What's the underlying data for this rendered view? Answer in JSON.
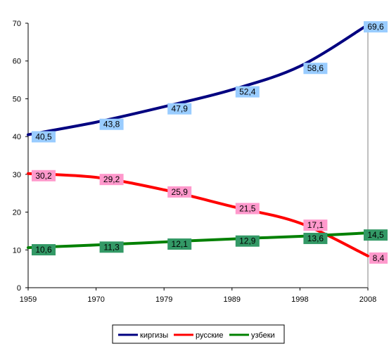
{
  "chart_data": {
    "type": "line",
    "x": [
      1959,
      1970,
      1979,
      1989,
      1998,
      2008
    ],
    "x_tick_labels": [
      "1959",
      "1970",
      "1979",
      "1989",
      "1998",
      "2008"
    ],
    "ylim": [
      0,
      70
    ],
    "y_tick_labels": [
      "0",
      "10",
      "20",
      "30",
      "40",
      "50",
      "60",
      "70"
    ],
    "grid": false,
    "legend_position": "bottom",
    "series": [
      {
        "name": "киргизы",
        "values": [
          40.5,
          43.8,
          47.9,
          52.4,
          58.6,
          69.6
        ],
        "labels": [
          "40,5",
          "43,8",
          "47,9",
          "52,4",
          "58,6",
          "69,6"
        ],
        "color": "#000080",
        "label_bg": "#99ccff"
      },
      {
        "name": "русские",
        "values": [
          30.2,
          29.2,
          25.9,
          21.5,
          17.1,
          8.4
        ],
        "labels": [
          "30,2",
          "29,2",
          "25,9",
          "21,5",
          "17,1",
          "8,4"
        ],
        "color": "#ff0000",
        "label_bg": "#ff99cc"
      },
      {
        "name": "узбеки",
        "values": [
          10.6,
          11.3,
          12.1,
          12.9,
          13.6,
          14.5
        ],
        "labels": [
          "10,6",
          "11,3",
          "12,1",
          "12,9",
          "13,6",
          "14,5"
        ],
        "color": "#008000",
        "label_bg": "#339966"
      }
    ]
  }
}
